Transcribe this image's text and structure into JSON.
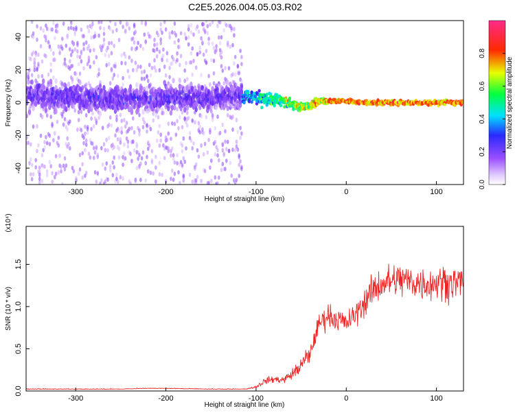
{
  "title": "C2E5.2026.004.05.03.R02",
  "chart_data": [
    {
      "type": "heatmap",
      "xlabel": "Height of straight line (km)",
      "ylabel": "Frequency (Hz)",
      "xlim": [
        -355,
        130
      ],
      "ylim": [
        -50,
        50
      ],
      "xticks": [
        -300,
        -200,
        -100,
        0,
        100
      ],
      "yticks": [
        -40,
        -20,
        0,
        20,
        40
      ],
      "colorbar": {
        "label": "Normalized spectral amplitude",
        "range": [
          0,
          1
        ],
        "ticks": [
          "0.0",
          "0.2",
          "0.4",
          "0.6",
          "0.8"
        ],
        "colormap": "rainbow (violet-blue-cyan-green-yellow-red-magenta)"
      },
      "ridge_center_hz": [
        {
          "x": -340,
          "y": 4
        },
        {
          "x": -250,
          "y": 2
        },
        {
          "x": -200,
          "y": 3
        },
        {
          "x": -150,
          "y": 3
        },
        {
          "x": -110,
          "y": 4
        },
        {
          "x": -90,
          "y": 2
        },
        {
          "x": -70,
          "y": 1
        },
        {
          "x": -50,
          "y": -3
        },
        {
          "x": -40,
          "y": -2
        },
        {
          "x": -30,
          "y": 1
        },
        {
          "x": -20,
          "y": 1
        },
        {
          "x": 0,
          "y": 1
        },
        {
          "x": 20,
          "y": 0
        },
        {
          "x": 60,
          "y": 0
        },
        {
          "x": 100,
          "y": 0
        },
        {
          "x": 130,
          "y": 0
        }
      ]
    },
    {
      "type": "line",
      "xlabel": "Height of straight line (km)",
      "ylabel": "SNR (10 * v/v)",
      "multiplier": "(x10⁴)",
      "xlim": [
        -355,
        130
      ],
      "ylim": [
        0,
        1.95
      ],
      "xticks": [
        -300,
        -200,
        -100,
        0,
        100
      ],
      "yticks": [
        "0.0",
        "0.5",
        "1.0",
        "1.5"
      ],
      "line_color": "#ee2222",
      "series": [
        {
          "points": [
            {
              "x": -355,
              "y": 0.02
            },
            {
              "x": -300,
              "y": 0.02
            },
            {
              "x": -250,
              "y": 0.02
            },
            {
              "x": -220,
              "y": 0.03
            },
            {
              "x": -150,
              "y": 0.02
            },
            {
              "x": -110,
              "y": 0.02
            },
            {
              "x": -100,
              "y": 0.05
            },
            {
              "x": -90,
              "y": 0.12
            },
            {
              "x": -80,
              "y": 0.14
            },
            {
              "x": -70,
              "y": 0.13
            },
            {
              "x": -60,
              "y": 0.2
            },
            {
              "x": -50,
              "y": 0.3
            },
            {
              "x": -40,
              "y": 0.45
            },
            {
              "x": -30,
              "y": 0.8
            },
            {
              "x": -20,
              "y": 0.9
            },
            {
              "x": -10,
              "y": 0.85
            },
            {
              "x": 0,
              "y": 0.8
            },
            {
              "x": 10,
              "y": 0.9
            },
            {
              "x": 20,
              "y": 1.05
            },
            {
              "x": 30,
              "y": 1.2
            },
            {
              "x": 40,
              "y": 1.28
            },
            {
              "x": 50,
              "y": 1.3
            },
            {
              "x": 60,
              "y": 1.32
            },
            {
              "x": 70,
              "y": 1.3
            },
            {
              "x": 80,
              "y": 1.28
            },
            {
              "x": 90,
              "y": 1.27
            },
            {
              "x": 100,
              "y": 1.28
            },
            {
              "x": 110,
              "y": 1.3
            },
            {
              "x": 120,
              "y": 1.28
            },
            {
              "x": 130,
              "y": 1.3
            }
          ]
        }
      ]
    }
  ]
}
